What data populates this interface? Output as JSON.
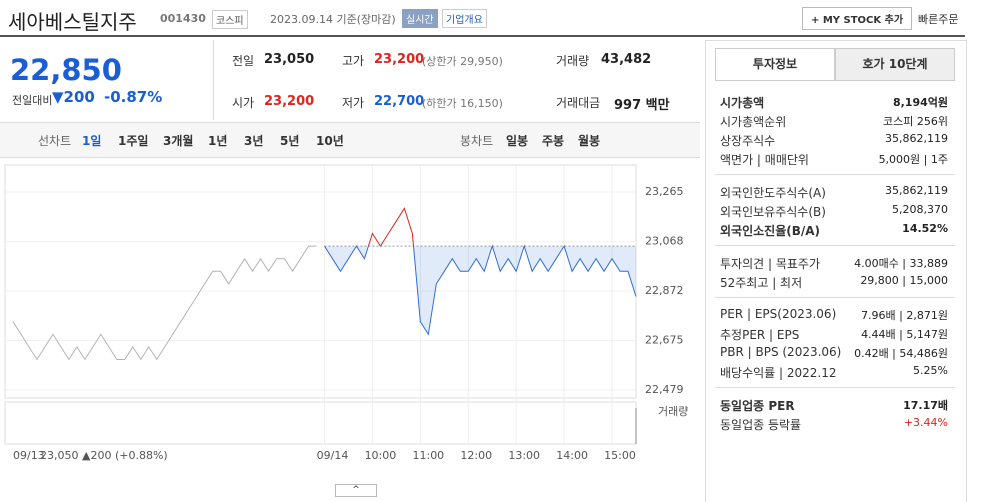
{
  "header": {
    "name": "세아베스틸지주",
    "code": "001430",
    "market": "코스피",
    "date": "2023.09.14 기준(장마감)",
    "realtime": "실시간",
    "overview": "기업개요",
    "mystock": "+ MY STOCK 추가",
    "quick_order": "빠른주문"
  },
  "price": {
    "current": "22,850",
    "change_label": "전일대비",
    "change": "▼200",
    "change_rate": "-0.87%",
    "color": "#1a5ed6"
  },
  "summary": [
    [
      {
        "label": "전일",
        "value": "23,050"
      },
      {
        "label": "고가",
        "value": "23,200",
        "extra": "(상한가 29,950)",
        "color": "#e0241b"
      },
      {
        "label": "거래량",
        "value": "43,482"
      }
    ],
    [
      {
        "label": "시가",
        "value": "23,200",
        "color": "#e0241b"
      },
      {
        "label": "저가",
        "value": "22,700",
        "extra": "(하한가 16,150)",
        "color": "#1a5ed6"
      },
      {
        "label": "거래대금",
        "value": "997 백만"
      }
    ]
  ],
  "tabs": {
    "line": "선차트",
    "periods": [
      "1일",
      "1주일",
      "3개월",
      "1년",
      "3년",
      "5년",
      "10년"
    ],
    "candle": "봉차트",
    "candle_periods": [
      "일봉",
      "주봉",
      "월봉"
    ]
  },
  "chart": {
    "type": "line",
    "prev_day_info": "23,050 ▲200 (+0.88%)",
    "volume_label": "거래량",
    "base": 23050,
    "ylim": [
      22447,
      23372
    ],
    "yticks": [
      {
        "value": 23265,
        "label": "23,265"
      },
      {
        "value": 23068,
        "label": "23,068"
      },
      {
        "value": 22872,
        "label": "22,872"
      },
      {
        "value": 22675,
        "label": "22,675"
      },
      {
        "value": 22479,
        "label": "22,479"
      }
    ],
    "xlim": [
      -400,
      390
    ],
    "xticks": [
      {
        "value": -390,
        "label": "09/13"
      },
      {
        "value": 0,
        "label": "09/14"
      },
      {
        "value": 60,
        "label": "10:00"
      },
      {
        "value": 120,
        "label": "11:00"
      },
      {
        "value": 180,
        "label": "12:00"
      },
      {
        "value": 240,
        "label": "13:00"
      },
      {
        "value": 300,
        "label": "14:00"
      },
      {
        "value": 360,
        "label": "15:00"
      }
    ],
    "series": [
      {
        "color": "#b4b4b4",
        "x": [
          -390,
          -380,
          -370,
          -360,
          -350,
          -340,
          -330,
          -320,
          -310,
          -300,
          -290,
          -280,
          -270,
          -260,
          -250,
          -240,
          -230,
          -220,
          -210,
          -200,
          -190,
          -180,
          -170,
          -160,
          -150,
          -140,
          -130,
          -120,
          -110,
          -100,
          -90,
          -80,
          -70,
          -60,
          -50,
          -40,
          -30,
          -20,
          -10
        ],
        "values": [
          22750,
          22700,
          22650,
          22600,
          22650,
          22700,
          22650,
          22600,
          22650,
          22600,
          22650,
          22700,
          22650,
          22600,
          22600,
          22650,
          22600,
          22650,
          22600,
          22650,
          22700,
          22750,
          22800,
          22850,
          22900,
          22950,
          22950,
          22900,
          22950,
          23000,
          22950,
          23000,
          22950,
          23000,
          23000,
          22950,
          23000,
          23050,
          23050
        ]
      },
      {
        "color": "#2f6fd6",
        "up_color": "#e0241b",
        "x": [
          0,
          10,
          20,
          30,
          40,
          50,
          60,
          70,
          80,
          90,
          100,
          110,
          120,
          130,
          140,
          150,
          160,
          170,
          180,
          190,
          200,
          210,
          220,
          230,
          240,
          250,
          260,
          270,
          280,
          290,
          300,
          310,
          320,
          330,
          340,
          350,
          360,
          370,
          380,
          390
        ],
        "values": [
          23050,
          23000,
          22950,
          23000,
          23050,
          23000,
          23100,
          23050,
          23100,
          23150,
          23200,
          23100,
          22750,
          22700,
          22900,
          22950,
          23000,
          22950,
          22950,
          23000,
          22950,
          23050,
          22950,
          23000,
          22950,
          23050,
          22950,
          23000,
          22950,
          23000,
          23050,
          22950,
          23000,
          22950,
          23000,
          22950,
          23000,
          22950,
          22950,
          22850
        ]
      }
    ]
  },
  "invest": {
    "tabs": [
      "투자정보",
      "호가 10단계"
    ],
    "sections": [
      [
        {
          "label": "시가총액",
          "value": "8,194억원",
          "bold": true
        },
        {
          "label": "시가총액순위",
          "value": "코스피 256위"
        },
        {
          "label": "상장주식수",
          "value": "35,862,119"
        },
        {
          "label": "액면가 | 매매단위",
          "value": "5,000원 | 1주"
        }
      ],
      [
        {
          "label": "외국인한도주식수(A)",
          "value": "35,862,119"
        },
        {
          "label": "외국인보유주식수(B)",
          "value": "5,208,370"
        },
        {
          "label": "외국인소진율(B/A)",
          "value": "14.52%",
          "bold": true
        }
      ],
      [
        {
          "label": "투자의견 | 목표주가",
          "value": "4.00매수 | 33,889"
        },
        {
          "label": "52주최고 | 최저",
          "value": "29,800 | 15,000"
        }
      ],
      [
        {
          "label": "PER | EPS(2023.06)",
          "value": "7.96배 | 2,871원"
        },
        {
          "label": "추정PER | EPS",
          "value": "4.44배 | 5,147원"
        },
        {
          "label": "PBR | BPS (2023.06)",
          "value": "0.42배 | 54,486원"
        },
        {
          "label": "배당수익률 | 2022.12",
          "value": "5.25%"
        }
      ],
      [
        {
          "label": "동일업종 PER",
          "value": "17.17배",
          "bold": true
        },
        {
          "label": "동일업종 등락률",
          "value": "+3.44%",
          "color": "#e0241b"
        }
      ]
    ]
  }
}
